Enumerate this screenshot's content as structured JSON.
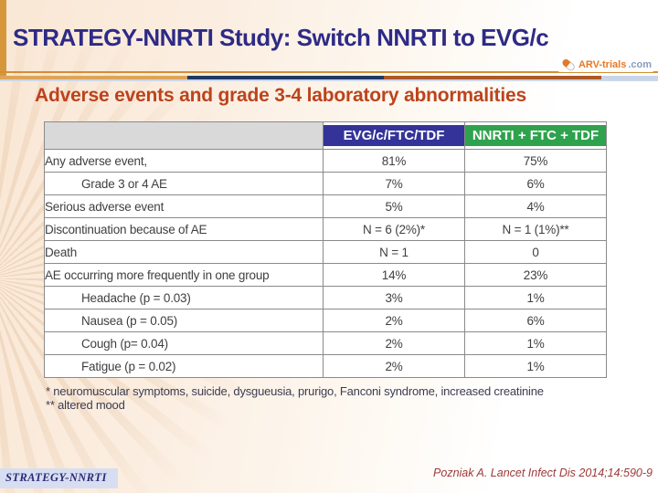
{
  "slide": {
    "title": "STRATEGY-NNRTI Study: Switch NNRTI to EVG/c",
    "subtitle": "Adverse events and grade 3-4 laboratory abnormalities",
    "logo": {
      "text_main": "ARV-trials",
      "text_suffix": ".com",
      "icon": "pill-icon"
    },
    "footnotes": [
      "* neuromuscular symptoms, suicide, dysgueusia, prurigo, Fanconi syndrome, increased creatinine",
      "** altered mood"
    ],
    "footer": {
      "left_label": "STRATEGY-NNRTI",
      "reference": "Pozniak A. Lancet Infect Dis 2014;14:590-9"
    }
  },
  "colors": {
    "title_text": "#2e2a86",
    "subtitle_text": "#bc431c",
    "header_evg_bg": "#333399",
    "header_nnrti_bg": "#2ea24c",
    "header_blank_bg": "#d9d9d9",
    "table_border": "#8a8a8a",
    "background_left": "#fae7d5",
    "left_strip": "#d6973b",
    "divider_tan": "#dea458",
    "divider_navy": "#1f3864",
    "divider_sienna": "#ac5827",
    "footer_box_bg": "#d8def2",
    "reference_text": "#9c3937",
    "logo_orange": "#e87722"
  },
  "table": {
    "columns": [
      "",
      "EVG/c/FTC/TDF",
      "NNRTI + FTC + TDF"
    ],
    "rows": [
      {
        "label": "Any adverse event,",
        "indent": false,
        "evg": "81%",
        "nnrti": "75%"
      },
      {
        "label": "Grade 3 or 4 AE",
        "indent": true,
        "evg": "7%",
        "nnrti": "6%"
      },
      {
        "label": "Serious adverse event",
        "indent": false,
        "evg": "5%",
        "nnrti": "4%"
      },
      {
        "label": "Discontinuation because of AE",
        "indent": false,
        "evg": "N = 6 (2%)*",
        "nnrti": "N = 1 (1%)**"
      },
      {
        "label": "Death",
        "indent": false,
        "evg": "N = 1",
        "nnrti": "0"
      },
      {
        "label": "AE occurring more frequently in one group",
        "indent": false,
        "evg": "14%",
        "nnrti": "23%"
      },
      {
        "label": "Headache (p = 0.03)",
        "indent": true,
        "evg": "3%",
        "nnrti": "1%"
      },
      {
        "label": "Nausea (p = 0.05)",
        "indent": true,
        "evg": "2%",
        "nnrti": "6%"
      },
      {
        "label": "Cough (p= 0.04)",
        "indent": true,
        "evg": "2%",
        "nnrti": "1%"
      },
      {
        "label": "Fatigue (p = 0.02)",
        "indent": true,
        "evg": "2%",
        "nnrti": "1%"
      }
    ]
  },
  "chart_data": {
    "type": "table",
    "title": "Adverse events and grade 3-4 laboratory abnormalities",
    "categories": [
      "Any adverse event,",
      "Grade 3 or 4 AE",
      "Serious adverse event",
      "Discontinuation because of AE",
      "Death",
      "AE occurring more frequently in one group",
      "Headache (p = 0.03)",
      "Nausea (p = 0.05)",
      "Cough (p= 0.04)",
      "Fatigue (p = 0.02)"
    ],
    "series": [
      {
        "name": "EVG/c/FTC/TDF",
        "values": [
          "81%",
          "7%",
          "5%",
          "N = 6 (2%)*",
          "N = 1",
          "14%",
          "3%",
          "2%",
          "2%",
          "2%"
        ]
      },
      {
        "name": "NNRTI + FTC + TDF",
        "values": [
          "75%",
          "6%",
          "4%",
          "N = 1 (1%)**",
          "0",
          "23%",
          "1%",
          "6%",
          "1%",
          "1%"
        ]
      }
    ]
  }
}
